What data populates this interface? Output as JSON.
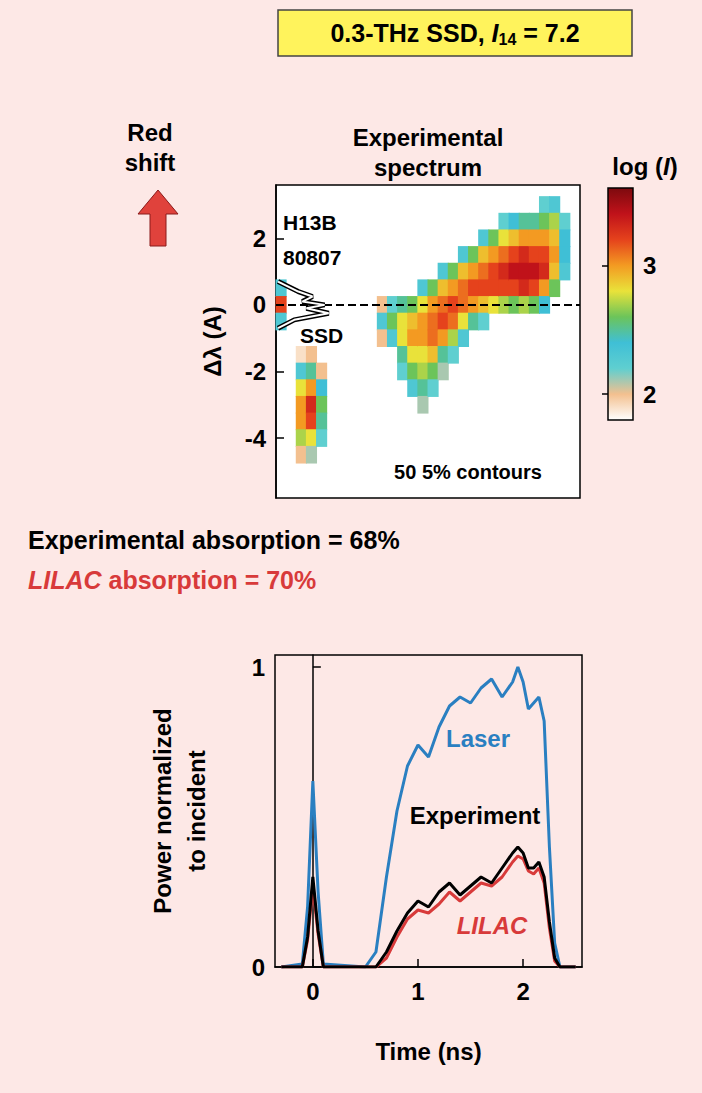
{
  "chart_data": [
    {
      "type": "heatmap",
      "title": "0.3-THz SSD, I14 = 7.2",
      "subtitle": "Experimental spectrum",
      "y_label": "Δλ (A)",
      "annotations": [
        "Red shift",
        "H13B",
        "80807",
        "SSD",
        "50 5% contours"
      ],
      "xlim": [
        0,
        30
      ],
      "ylim": [
        -5.8,
        3.6
      ],
      "yticks": [
        -4,
        -2,
        0,
        2
      ],
      "tick_labels": "y",
      "grid": false,
      "zero_line": 0,
      "colorbar": {
        "label": "log (I)",
        "range": [
          1.8,
          3.6
        ],
        "ticks": [
          2,
          3
        ],
        "colors": [
          "#ffffff",
          "#f3c08f",
          "#5fcfd0",
          "#3fbfd6",
          "#6cc45a",
          "#e9e23a",
          "#f39a22",
          "#e5421c",
          "#c0121a",
          "#7d0a0e"
        ]
      },
      "lineout": {
        "x": [
          0.2,
          2.2,
          3.6,
          2.6,
          4.8,
          3.0,
          5.2,
          1.8,
          0.2
        ],
        "y": [
          0.7,
          0.4,
          0.25,
          0.1,
          0,
          -0.1,
          -0.25,
          -0.45,
          -0.7
        ]
      },
      "cells": [
        [
          0.5,
          0.5,
          2.3
        ],
        [
          0.5,
          0,
          3.2
        ],
        [
          0.5,
          -0.5,
          2.3
        ],
        [
          2.5,
          -1.5,
          1.9
        ],
        [
          2.5,
          -2,
          2.3
        ],
        [
          2.5,
          -2.5,
          2.8
        ],
        [
          2.5,
          -3,
          3.0
        ],
        [
          2.5,
          -3.5,
          3.0
        ],
        [
          2.5,
          -4,
          2.7
        ],
        [
          2.5,
          -4.5,
          2.0
        ],
        [
          3.5,
          -1.5,
          2.0
        ],
        [
          3.5,
          -2,
          2.5
        ],
        [
          3.5,
          -2.5,
          3.0
        ],
        [
          3.5,
          -3,
          3.3
        ],
        [
          3.5,
          -3.5,
          3.2
        ],
        [
          3.5,
          -4,
          2.8
        ],
        [
          3.5,
          -4.5,
          2.1
        ],
        [
          4.5,
          -2,
          2.0
        ],
        [
          4.5,
          -2.5,
          2.4
        ],
        [
          4.5,
          -3,
          2.6
        ],
        [
          4.5,
          -3.5,
          2.5
        ],
        [
          4.5,
          -4,
          2.2
        ],
        [
          10.5,
          0,
          2.0
        ],
        [
          10.5,
          -0.5,
          2.3
        ],
        [
          10.5,
          -1,
          2.0
        ],
        [
          11.5,
          0,
          2.2
        ],
        [
          11.5,
          -0.5,
          2.6
        ],
        [
          11.5,
          -1,
          2.3
        ],
        [
          12.5,
          0,
          2.5
        ],
        [
          12.5,
          -0.5,
          2.8
        ],
        [
          12.5,
          -1,
          2.8
        ],
        [
          12.5,
          -1.5,
          2.5
        ],
        [
          12.5,
          -2,
          2.2
        ],
        [
          13.5,
          0,
          2.6
        ],
        [
          13.5,
          -0.5,
          2.9
        ],
        [
          13.5,
          -1,
          3.0
        ],
        [
          13.5,
          -1.5,
          2.8
        ],
        [
          13.5,
          -2,
          2.6
        ],
        [
          13.5,
          -2.5,
          2.3
        ],
        [
          14.5,
          0.5,
          2.3
        ],
        [
          14.5,
          0,
          2.8
        ],
        [
          14.5,
          -0.5,
          3.0
        ],
        [
          14.5,
          -1,
          3.0
        ],
        [
          14.5,
          -1.5,
          2.8
        ],
        [
          14.5,
          -2,
          2.7
        ],
        [
          14.5,
          -2.5,
          2.5
        ],
        [
          14.5,
          -3,
          2.1
        ],
        [
          15.5,
          0.5,
          2.6
        ],
        [
          15.5,
          0,
          3.0
        ],
        [
          15.5,
          -0.5,
          3.1
        ],
        [
          15.5,
          -1,
          3.1
        ],
        [
          15.5,
          -1.5,
          2.9
        ],
        [
          15.5,
          -2,
          2.6
        ],
        [
          15.5,
          -2.5,
          2.2
        ],
        [
          16.5,
          1,
          2.3
        ],
        [
          16.5,
          0.5,
          2.9
        ],
        [
          16.5,
          0,
          3.1
        ],
        [
          16.5,
          -0.5,
          3.2
        ],
        [
          16.5,
          -1,
          3.0
        ],
        [
          16.5,
          -1.5,
          2.5
        ],
        [
          16.5,
          -2,
          2.1
        ],
        [
          17.5,
          1,
          2.6
        ],
        [
          17.5,
          0.5,
          3.0
        ],
        [
          17.5,
          0,
          3.2
        ],
        [
          17.5,
          -0.5,
          3.1
        ],
        [
          17.5,
          -1,
          2.7
        ],
        [
          17.5,
          -1.5,
          2.2
        ],
        [
          18.5,
          1.5,
          2.3
        ],
        [
          18.5,
          1,
          2.9
        ],
        [
          18.5,
          0.5,
          3.1
        ],
        [
          18.5,
          0,
          3.1
        ],
        [
          18.5,
          -0.5,
          2.8
        ],
        [
          18.5,
          -1,
          2.3
        ],
        [
          19.5,
          1.5,
          2.6
        ],
        [
          19.5,
          1,
          3.0
        ],
        [
          19.5,
          0.5,
          3.2
        ],
        [
          19.5,
          0,
          3.0
        ],
        [
          19.5,
          -0.5,
          2.5
        ],
        [
          20.5,
          2,
          2.3
        ],
        [
          20.5,
          1.5,
          2.9
        ],
        [
          20.5,
          1,
          3.1
        ],
        [
          20.5,
          0.5,
          3.2
        ],
        [
          20.5,
          0,
          2.9
        ],
        [
          20.5,
          -0.5,
          2.2
        ],
        [
          21.5,
          2,
          2.6
        ],
        [
          21.5,
          1.5,
          3.0
        ],
        [
          21.5,
          1,
          3.2
        ],
        [
          21.5,
          0.5,
          3.2
        ],
        [
          21.5,
          0,
          2.8
        ],
        [
          22.5,
          2.5,
          2.2
        ],
        [
          22.5,
          2,
          2.8
        ],
        [
          22.5,
          1.5,
          3.1
        ],
        [
          22.5,
          1,
          3.3
        ],
        [
          22.5,
          0.5,
          3.2
        ],
        [
          22.5,
          0,
          2.7
        ],
        [
          23.5,
          2.5,
          2.4
        ],
        [
          23.5,
          2,
          2.9
        ],
        [
          23.5,
          1.5,
          3.2
        ],
        [
          23.5,
          1,
          3.4
        ],
        [
          23.5,
          0.5,
          3.2
        ],
        [
          23.5,
          0,
          2.6
        ],
        [
          24.5,
          2.5,
          2.5
        ],
        [
          24.5,
          2,
          3.0
        ],
        [
          24.5,
          1.5,
          3.3
        ],
        [
          24.5,
          1,
          3.4
        ],
        [
          24.5,
          0.5,
          3.3
        ],
        [
          24.5,
          0,
          2.7
        ],
        [
          25.5,
          2.5,
          2.5
        ],
        [
          25.5,
          2,
          3.0
        ],
        [
          25.5,
          1.5,
          3.2
        ],
        [
          25.5,
          1,
          3.4
        ],
        [
          25.5,
          0.5,
          3.2
        ],
        [
          25.5,
          0,
          2.6
        ],
        [
          26.5,
          3,
          2.2
        ],
        [
          26.5,
          2.5,
          2.6
        ],
        [
          26.5,
          2,
          3.0
        ],
        [
          26.5,
          1.5,
          3.2
        ],
        [
          26.5,
          1,
          3.3
        ],
        [
          26.5,
          0.5,
          3.0
        ],
        [
          26.5,
          0,
          2.4
        ],
        [
          27.5,
          3,
          2.3
        ],
        [
          27.5,
          2.5,
          2.7
        ],
        [
          27.5,
          2,
          2.9
        ],
        [
          27.5,
          1.5,
          3.0
        ],
        [
          27.5,
          1,
          2.9
        ],
        [
          27.5,
          0.5,
          2.6
        ],
        [
          28.5,
          2.5,
          2.2
        ],
        [
          28.5,
          2,
          2.4
        ],
        [
          28.5,
          1.5,
          2.4
        ],
        [
          28.5,
          1,
          2.3
        ]
      ]
    },
    {
      "type": "line",
      "annotations": [
        "Experimental absorption = 68%",
        "LILAC absorption = 70%"
      ],
      "x_label": "Time (ns)",
      "y_label": "Power normalized to incident",
      "xlim": [
        -0.36,
        2.56
      ],
      "ylim": [
        0,
        1.04
      ],
      "xticks": [
        0,
        1,
        2
      ],
      "yticks": [
        0,
        1
      ],
      "grid": false,
      "x": [
        -0.3,
        -0.1,
        -0.05,
        0,
        0.05,
        0.1,
        0.5,
        0.6,
        0.7,
        0.8,
        0.9,
        1.0,
        1.1,
        1.2,
        1.3,
        1.4,
        1.5,
        1.6,
        1.7,
        1.8,
        1.9,
        1.95,
        2.0,
        2.05,
        2.1,
        2.15,
        2.2,
        2.25,
        2.3,
        2.35,
        2.5
      ],
      "series": [
        {
          "name": "Laser",
          "color": "#2a7fc1",
          "values": [
            0,
            0.01,
            0.2,
            0.62,
            0.25,
            0.01,
            0,
            0.05,
            0.3,
            0.52,
            0.67,
            0.74,
            0.7,
            0.8,
            0.87,
            0.9,
            0.88,
            0.93,
            0.96,
            0.9,
            0.95,
            1.0,
            0.95,
            0.86,
            0.88,
            0.9,
            0.82,
            0.4,
            0.08,
            0,
            0
          ]
        },
        {
          "name": "Experiment",
          "color": "#000000",
          "values": [
            0,
            0,
            0.1,
            0.3,
            0.12,
            0,
            0,
            0,
            0.05,
            0.12,
            0.18,
            0.22,
            0.2,
            0.25,
            0.28,
            0.24,
            0.27,
            0.3,
            0.28,
            0.33,
            0.38,
            0.4,
            0.38,
            0.33,
            0.33,
            0.35,
            0.3,
            0.15,
            0.03,
            0,
            0
          ]
        },
        {
          "name": "LILAC",
          "color": "#d83a3a",
          "values": [
            0,
            0,
            0.09,
            0.27,
            0.11,
            0,
            0,
            0,
            0.03,
            0.1,
            0.16,
            0.19,
            0.18,
            0.21,
            0.25,
            0.22,
            0.25,
            0.28,
            0.27,
            0.3,
            0.35,
            0.37,
            0.36,
            0.32,
            0.31,
            0.33,
            0.28,
            0.13,
            0.02,
            0,
            0
          ]
        }
      ]
    }
  ]
}
